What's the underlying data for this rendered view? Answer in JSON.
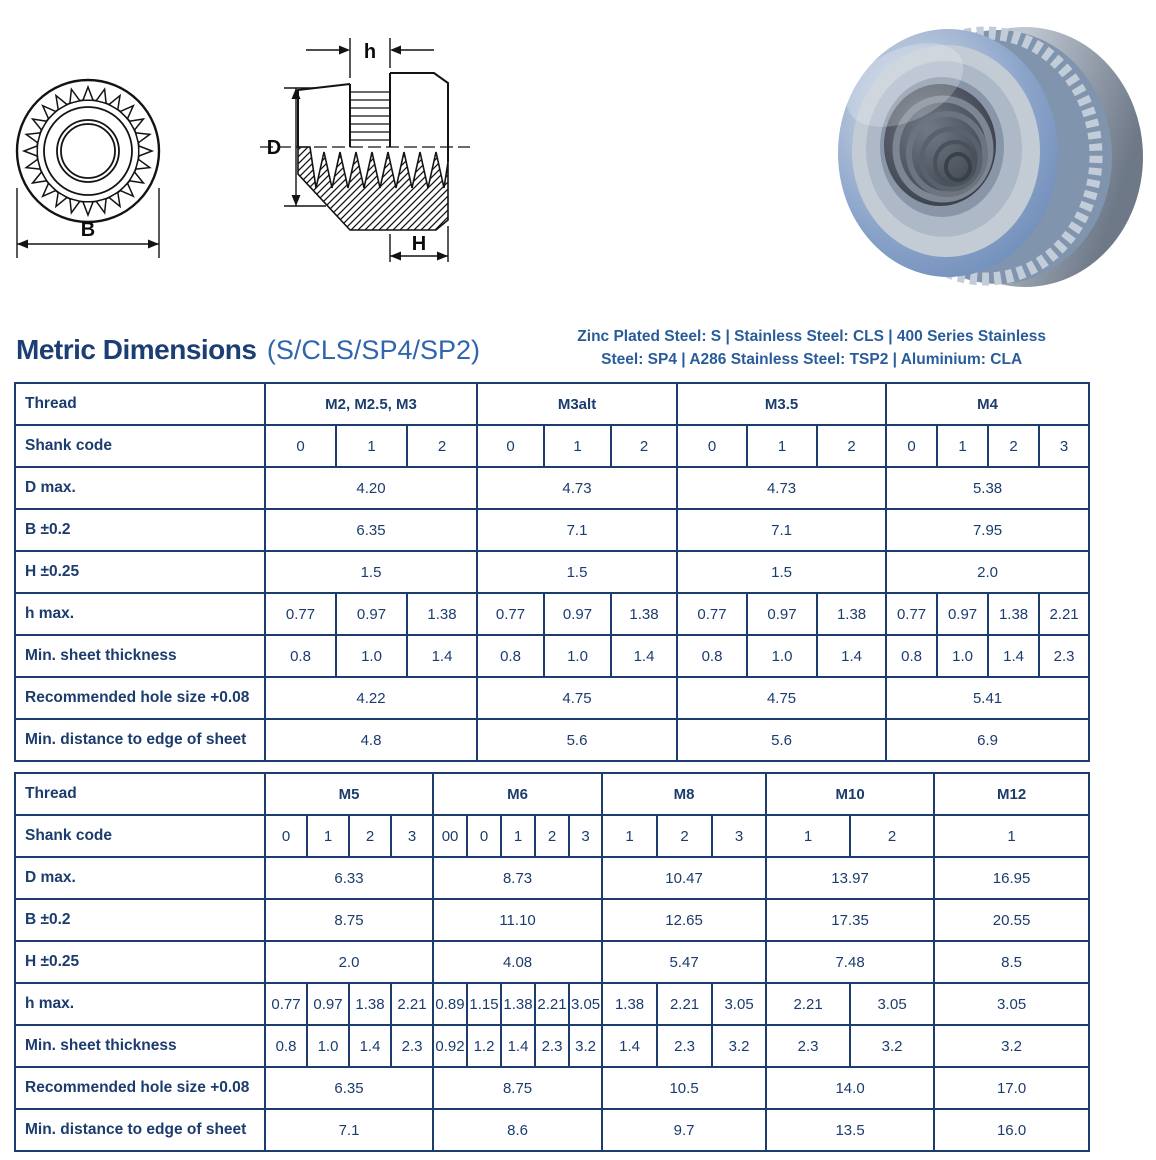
{
  "header": {
    "title": "Metric Dimensions",
    "title_suffix": "(S/CLS/SP4/SP2)",
    "material_note_line1": "Zinc Plated Steel: S | Stainless Steel: CLS | 400 Series Stainless",
    "material_note_line2": "Steel: SP4 | A286 Stainless Steel: TSP2 | Aluminium: CLA"
  },
  "drawings": {
    "front_view_label": "B",
    "side_view_labels": {
      "shank_height": "h",
      "diameter": "D",
      "thickness": "H"
    }
  },
  "colors": {
    "table_navy": "#1c3c6e",
    "title_navy": "#1c3e75",
    "accent_blue": "#2f66ac",
    "note_blue": "#2a5c9c",
    "nut_blue": "#8aa3c9",
    "nut_steel": "#aeb9c6"
  },
  "tables": [
    {
      "rows": [
        {
          "label": "Thread",
          "bold": true,
          "cells": [
            {
              "t": "M2, M2.5, M3",
              "s": 3
            },
            {
              "t": "M3alt",
              "s": 3
            },
            {
              "t": "M3.5",
              "s": 3
            },
            {
              "t": "M4",
              "s": 4
            }
          ]
        },
        {
          "label": "Shank code",
          "cells": [
            {
              "t": "0",
              "s": 1
            },
            {
              "t": "1",
              "s": 1
            },
            {
              "t": "2",
              "s": 1
            },
            {
              "t": "0",
              "s": 1
            },
            {
              "t": "1",
              "s": 1
            },
            {
              "t": "2",
              "s": 1
            },
            {
              "t": "0",
              "s": 1
            },
            {
              "t": "1",
              "s": 1
            },
            {
              "t": "2",
              "s": 1
            },
            {
              "t": "0",
              "s": 1
            },
            {
              "t": "1",
              "s": 1
            },
            {
              "t": "2",
              "s": 1
            },
            {
              "t": "3",
              "s": 1
            }
          ]
        },
        {
          "label": "D max.",
          "cells": [
            {
              "t": "4.20",
              "s": 3
            },
            {
              "t": "4.73",
              "s": 3
            },
            {
              "t": "4.73",
              "s": 3
            },
            {
              "t": "5.38",
              "s": 4
            }
          ]
        },
        {
          "label": "B ±0.2",
          "cells": [
            {
              "t": "6.35",
              "s": 3
            },
            {
              "t": "7.1",
              "s": 3
            },
            {
              "t": "7.1",
              "s": 3
            },
            {
              "t": "7.95",
              "s": 4
            }
          ]
        },
        {
          "label": "H ±0.25",
          "cells": [
            {
              "t": "1.5",
              "s": 3
            },
            {
              "t": "1.5",
              "s": 3
            },
            {
              "t": "1.5",
              "s": 3
            },
            {
              "t": "2.0",
              "s": 4
            }
          ]
        },
        {
          "label": "h max.",
          "cells": [
            {
              "t": "0.77",
              "s": 1
            },
            {
              "t": "0.97",
              "s": 1
            },
            {
              "t": "1.38",
              "s": 1
            },
            {
              "t": "0.77",
              "s": 1
            },
            {
              "t": "0.97",
              "s": 1
            },
            {
              "t": "1.38",
              "s": 1
            },
            {
              "t": "0.77",
              "s": 1
            },
            {
              "t": "0.97",
              "s": 1
            },
            {
              "t": "1.38",
              "s": 1
            },
            {
              "t": "0.77",
              "s": 1
            },
            {
              "t": "0.97",
              "s": 1
            },
            {
              "t": "1.38",
              "s": 1
            },
            {
              "t": "2.21",
              "s": 1
            }
          ]
        },
        {
          "label": "Min. sheet thickness",
          "cells": [
            {
              "t": "0.8",
              "s": 1
            },
            {
              "t": "1.0",
              "s": 1
            },
            {
              "t": "1.4",
              "s": 1
            },
            {
              "t": "0.8",
              "s": 1
            },
            {
              "t": "1.0",
              "s": 1
            },
            {
              "t": "1.4",
              "s": 1
            },
            {
              "t": "0.8",
              "s": 1
            },
            {
              "t": "1.0",
              "s": 1
            },
            {
              "t": "1.4",
              "s": 1
            },
            {
              "t": "0.8",
              "s": 1
            },
            {
              "t": "1.0",
              "s": 1
            },
            {
              "t": "1.4",
              "s": 1
            },
            {
              "t": "2.3",
              "s": 1
            }
          ]
        },
        {
          "label": "Recommended hole size +0.08",
          "cells": [
            {
              "t": "4.22",
              "s": 3
            },
            {
              "t": "4.75",
              "s": 3
            },
            {
              "t": "4.75",
              "s": 3
            },
            {
              "t": "5.41",
              "s": 4
            }
          ]
        },
        {
          "label": "Min. distance to edge of sheet",
          "cells": [
            {
              "t": "4.8",
              "s": 3
            },
            {
              "t": "5.6",
              "s": 3
            },
            {
              "t": "5.6",
              "s": 3
            },
            {
              "t": "6.9",
              "s": 4
            }
          ]
        }
      ]
    },
    {
      "rows": [
        {
          "label": "Thread",
          "bold": true,
          "cells": [
            {
              "t": "M5",
              "s": 4
            },
            {
              "t": "M6",
              "s": 5
            },
            {
              "t": "M8",
              "s": 3
            },
            {
              "t": "M10",
              "s": 2
            },
            {
              "t": "M12",
              "s": 1
            }
          ]
        },
        {
          "label": "Shank code",
          "cells": [
            {
              "t": "0",
              "s": 1
            },
            {
              "t": "1",
              "s": 1
            },
            {
              "t": "2",
              "s": 1
            },
            {
              "t": "3",
              "s": 1
            },
            {
              "t": "00",
              "s": 1
            },
            {
              "t": "0",
              "s": 1
            },
            {
              "t": "1",
              "s": 1
            },
            {
              "t": "2",
              "s": 1
            },
            {
              "t": "3",
              "s": 1
            },
            {
              "t": "1",
              "s": 1
            },
            {
              "t": "2",
              "s": 1
            },
            {
              "t": "3",
              "s": 1
            },
            {
              "t": "1",
              "s": 1
            },
            {
              "t": "2",
              "s": 1
            },
            {
              "t": "1",
              "s": 1
            }
          ]
        },
        {
          "label": "D max.",
          "cells": [
            {
              "t": "6.33",
              "s": 4
            },
            {
              "t": "8.73",
              "s": 5
            },
            {
              "t": "10.47",
              "s": 3
            },
            {
              "t": "13.97",
              "s": 2
            },
            {
              "t": "16.95",
              "s": 1
            }
          ]
        },
        {
          "label": "B ±0.2",
          "cells": [
            {
              "t": "8.75",
              "s": 4
            },
            {
              "t": "11.10",
              "s": 5
            },
            {
              "t": "12.65",
              "s": 3
            },
            {
              "t": "17.35",
              "s": 2
            },
            {
              "t": "20.55",
              "s": 1
            }
          ]
        },
        {
          "label": "H ±0.25",
          "cells": [
            {
              "t": "2.0",
              "s": 4
            },
            {
              "t": "4.08",
              "s": 5
            },
            {
              "t": "5.47",
              "s": 3
            },
            {
              "t": "7.48",
              "s": 2
            },
            {
              "t": "8.5",
              "s": 1
            }
          ]
        },
        {
          "label": "h max.",
          "cells": [
            {
              "t": "0.77",
              "s": 1
            },
            {
              "t": "0.97",
              "s": 1
            },
            {
              "t": "1.38",
              "s": 1
            },
            {
              "t": "2.21",
              "s": 1
            },
            {
              "t": "0.89",
              "s": 1
            },
            {
              "t": "1.15",
              "s": 1
            },
            {
              "t": "1.38",
              "s": 1
            },
            {
              "t": "2.21",
              "s": 1
            },
            {
              "t": "3.05",
              "s": 1
            },
            {
              "t": "1.38",
              "s": 1
            },
            {
              "t": "2.21",
              "s": 1
            },
            {
              "t": "3.05",
              "s": 1
            },
            {
              "t": "2.21",
              "s": 1
            },
            {
              "t": "3.05",
              "s": 1
            },
            {
              "t": "3.05",
              "s": 1
            }
          ]
        },
        {
          "label": "Min. sheet thickness",
          "cells": [
            {
              "t": "0.8",
              "s": 1
            },
            {
              "t": "1.0",
              "s": 1
            },
            {
              "t": "1.4",
              "s": 1
            },
            {
              "t": "2.3",
              "s": 1
            },
            {
              "t": "0.92",
              "s": 1
            },
            {
              "t": "1.2",
              "s": 1
            },
            {
              "t": "1.4",
              "s": 1
            },
            {
              "t": "2.3",
              "s": 1
            },
            {
              "t": "3.2",
              "s": 1
            },
            {
              "t": "1.4",
              "s": 1
            },
            {
              "t": "2.3",
              "s": 1
            },
            {
              "t": "3.2",
              "s": 1
            },
            {
              "t": "2.3",
              "s": 1
            },
            {
              "t": "3.2",
              "s": 1
            },
            {
              "t": "3.2",
              "s": 1
            }
          ]
        },
        {
          "label": "Recommended hole size +0.08",
          "cells": [
            {
              "t": "6.35",
              "s": 4
            },
            {
              "t": "8.75",
              "s": 5
            },
            {
              "t": "10.5",
              "s": 3
            },
            {
              "t": "14.0",
              "s": 2
            },
            {
              "t": "17.0",
              "s": 1
            }
          ]
        },
        {
          "label": "Min. distance to edge of sheet",
          "cells": [
            {
              "t": "7.1",
              "s": 4
            },
            {
              "t": "8.6",
              "s": 5
            },
            {
              "t": "9.7",
              "s": 3
            },
            {
              "t": "13.5",
              "s": 2
            },
            {
              "t": "16.0",
              "s": 1
            }
          ]
        }
      ]
    }
  ]
}
